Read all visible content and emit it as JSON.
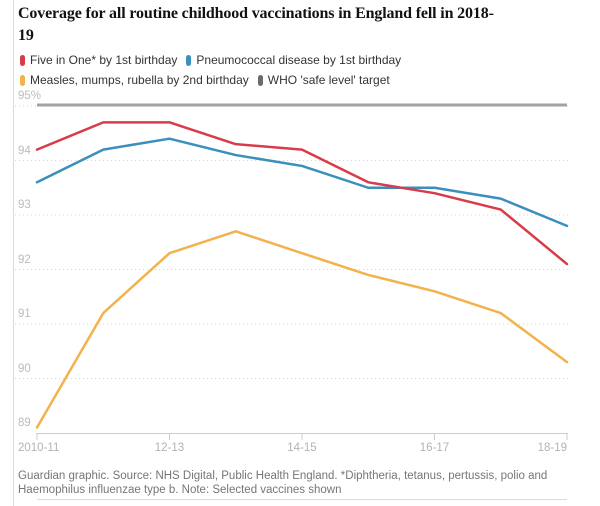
{
  "title_lines": [
    "Coverage for all routine childhood vaccinations in England fell in 2018-",
    "19"
  ],
  "legend": {
    "position": "top",
    "items": [
      {
        "id": "five-in-one",
        "label": "Five in One* by 1st birthday",
        "color": "#d83c4a"
      },
      {
        "id": "pneumococcal",
        "label": "Pneumococcal disease by 1st birthday",
        "color": "#3a8fbd"
      },
      {
        "id": "mmr",
        "label": "Measles, mumps, rubella by 2nd birthday",
        "color": "#f3b24b"
      },
      {
        "id": "who-target",
        "label": "WHO 'safe level' target",
        "color": "#6b6b6b"
      }
    ]
  },
  "chart_data": {
    "type": "line",
    "title": "Coverage for all routine childhood vaccinations in England fell in 2018-19",
    "x": [
      "2010-11",
      "2011-12",
      "2012-13",
      "2013-14",
      "2014-15",
      "2015-16",
      "2016-17",
      "2017-18",
      "2018-19"
    ],
    "x_axis_labels": [
      "2010-11",
      "12-13",
      "14-15",
      "16-17",
      "18-19"
    ],
    "x_label_positions": [
      0,
      2,
      4,
      6,
      8
    ],
    "y_ticks": [
      89,
      90,
      91,
      92,
      93,
      94,
      95
    ],
    "y_top_label": "95%",
    "ylim": [
      89,
      95.6
    ],
    "grid": "horizontal-dotted",
    "unit": "%",
    "series": [
      {
        "id": "five-in-one",
        "name": "Five in One* by 1st birthday",
        "color": "#d83c4a",
        "values": [
          94.2,
          94.7,
          94.7,
          94.3,
          94.2,
          93.6,
          93.4,
          93.1,
          92.1
        ]
      },
      {
        "id": "pneumococcal",
        "name": "Pneumococcal disease by 1st birthday",
        "color": "#3a8fbd",
        "values": [
          93.6,
          94.2,
          94.4,
          94.1,
          93.9,
          93.5,
          93.5,
          93.3,
          92.8
        ]
      },
      {
        "id": "mmr",
        "name": "Measles, mumps, rubella by 2nd birthday",
        "color": "#f3b24b",
        "values": [
          89.1,
          91.2,
          92.3,
          92.7,
          92.3,
          91.9,
          91.6,
          91.2,
          90.3
        ]
      }
    ],
    "who_target": {
      "label": "WHO 'safe level' target",
      "value": 95,
      "color": "#a3a3a3"
    }
  },
  "footer_lines": [
    "Guardian graphic. Source: NHS Digital, Public Health England. *Diphtheria, tetanus, pertussis, polio and",
    "Haemophilus influenzae type b. Note: Selected vaccines shown"
  ]
}
